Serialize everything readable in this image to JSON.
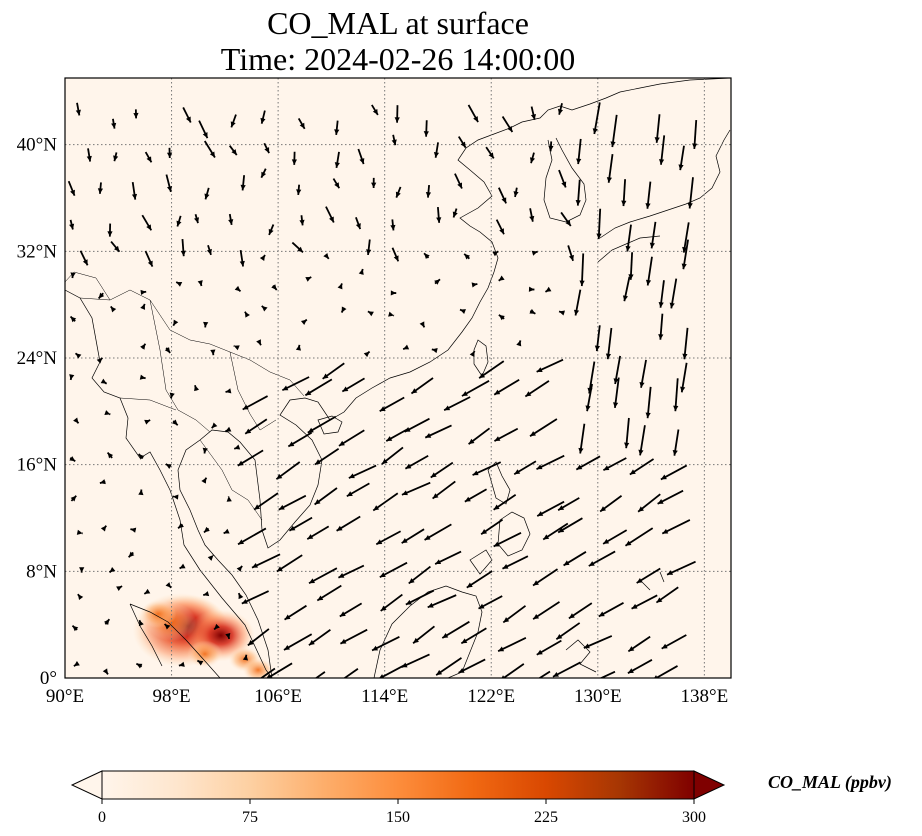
{
  "title": {
    "line1": "CO_MAL at surface",
    "line2": "Time: 2024-02-26 14:00:00"
  },
  "map": {
    "lon_range": [
      90,
      140
    ],
    "lat_range": [
      0,
      45
    ],
    "lon_ticks": [
      {
        "value": 90,
        "label": "90°E"
      },
      {
        "value": 98,
        "label": "98°E"
      },
      {
        "value": 106,
        "label": "106°E"
      },
      {
        "value": 114,
        "label": "114°E"
      },
      {
        "value": 122,
        "label": "122°E"
      },
      {
        "value": 130,
        "label": "130°E"
      },
      {
        "value": 138,
        "label": "138°E"
      }
    ],
    "lat_ticks": [
      {
        "value": 0,
        "label": "0°"
      },
      {
        "value": 8,
        "label": "8°N"
      },
      {
        "value": 16,
        "label": "16°N"
      },
      {
        "value": 24,
        "label": "24°N"
      },
      {
        "value": 32,
        "label": "32°N"
      },
      {
        "value": 40,
        "label": "40°N"
      }
    ],
    "gridlines": true,
    "background_color": "#fff5eb",
    "coast_color": "#000000",
    "field_hotspots": [
      {
        "lon": 98.7,
        "lat": 3.6,
        "value": 290
      },
      {
        "lon": 99.2,
        "lat": 3.9,
        "value": 230
      },
      {
        "lon": 101.7,
        "lat": 3.2,
        "value": 180
      },
      {
        "lon": 98.0,
        "lat": 4.2,
        "value": 110
      },
      {
        "lon": 97.0,
        "lat": 4.8,
        "value": 60
      },
      {
        "lon": 100.5,
        "lat": 1.8,
        "value": 55
      },
      {
        "lon": 103.5,
        "lat": 1.4,
        "value": 45
      },
      {
        "lon": 104.5,
        "lat": 0.6,
        "value": 40
      }
    ]
  },
  "colorbar": {
    "label": "CO_MAL (ppbv)",
    "min": 0,
    "max": 300,
    "ticks": [
      {
        "value": 0,
        "label": "0"
      },
      {
        "value": 75,
        "label": "75"
      },
      {
        "value": 150,
        "label": "150"
      },
      {
        "value": 225,
        "label": "225"
      },
      {
        "value": 300,
        "label": "300"
      }
    ],
    "colormap": [
      "#fff5eb",
      "#fee6ce",
      "#fdd0a2",
      "#fdae6b",
      "#fd8d3c",
      "#f16913",
      "#d94801",
      "#a63603",
      "#7f2704"
    ],
    "extend": "both"
  }
}
